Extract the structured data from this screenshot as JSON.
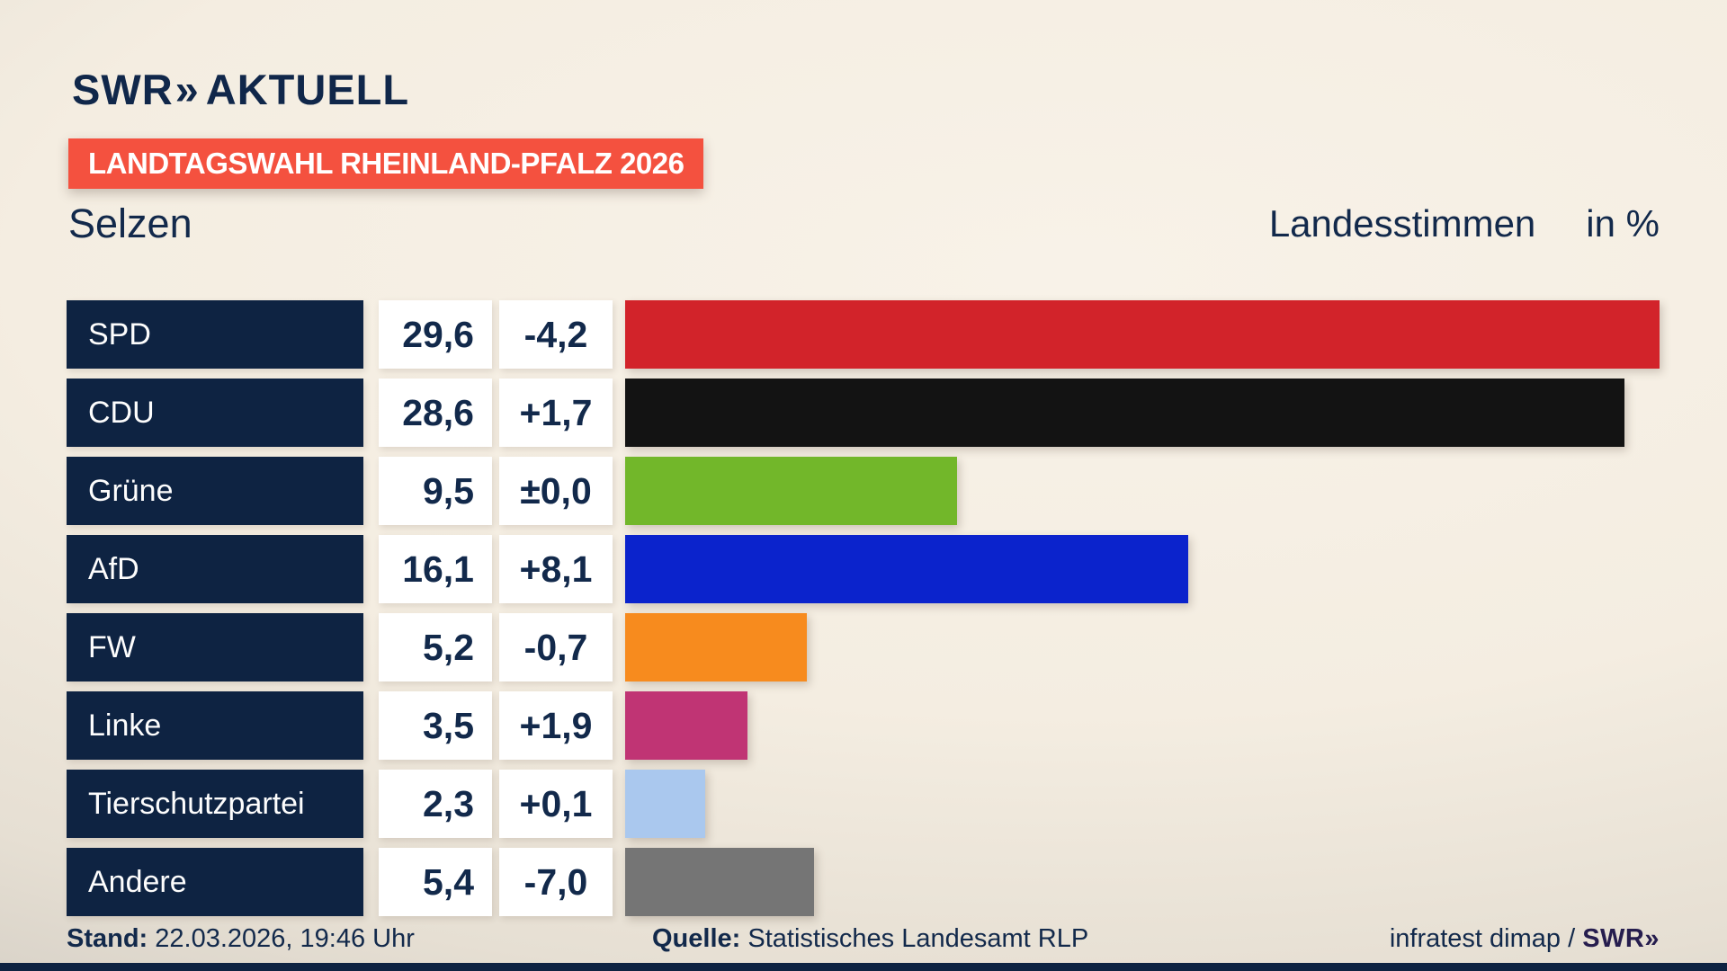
{
  "header": {
    "logo_swr": "SWR",
    "logo_chevrons": "»",
    "logo_suffix": "AKTUELL",
    "badge": "LANDTAGSWAHL RHEINLAND-PFALZ 2026",
    "location": "Selzen",
    "measure": "Landesstimmen",
    "unit": "in %"
  },
  "chart_data": {
    "type": "bar",
    "orientation": "horizontal",
    "title": "Landtagswahl Rheinland-Pfalz 2026 – Selzen – Landesstimmen in %",
    "value_unit": "%",
    "xlim": [
      0,
      29.6
    ],
    "categories": [
      "SPD",
      "CDU",
      "Grüne",
      "AfD",
      "FW",
      "Linke",
      "Tierschutzpartei",
      "Andere"
    ],
    "values": [
      29.6,
      28.6,
      9.5,
      16.1,
      5.2,
      3.5,
      2.3,
      5.4
    ],
    "changes": [
      -4.2,
      1.7,
      0.0,
      8.1,
      -0.7,
      1.9,
      0.1,
      -7.0
    ],
    "bars": [
      {
        "party": "SPD",
        "value_label": "29,6",
        "change_label": "-4,2",
        "color": "#d2232a"
      },
      {
        "party": "CDU",
        "value_label": "28,6",
        "change_label": "+1,7",
        "color": "#131313"
      },
      {
        "party": "Grüne",
        "value_label": "9,5",
        "change_label": "±0,0",
        "color": "#72b72a"
      },
      {
        "party": "AfD",
        "value_label": "16,1",
        "change_label": "+8,1",
        "color": "#0b23cc"
      },
      {
        "party": "FW",
        "value_label": "5,2",
        "change_label": "-0,7",
        "color": "#f78b1e"
      },
      {
        "party": "Linke",
        "value_label": "3,5",
        "change_label": "+1,9",
        "color": "#c03474"
      },
      {
        "party": "Tierschutzpartei",
        "value_label": "2,3",
        "change_label": "+0,1",
        "color": "#aac8ee"
      },
      {
        "party": "Andere",
        "value_label": "5,4",
        "change_label": "-7,0",
        "color": "#757575"
      }
    ]
  },
  "footer": {
    "stand_label": "Stand:",
    "stand_value": " 22.03.2026, 19:46 Uhr",
    "quelle_label": "Quelle:",
    "quelle_value": " Statistisches Landesamt RLP",
    "credit_text": "infratest dimap / ",
    "credit_brand": "SWR»"
  },
  "colors": {
    "background_cream": "#f4ede1",
    "navy_text": "#12294b",
    "navy_box": "#0e2342",
    "badge_red": "#f4513f",
    "box_white": "#ffffff"
  }
}
